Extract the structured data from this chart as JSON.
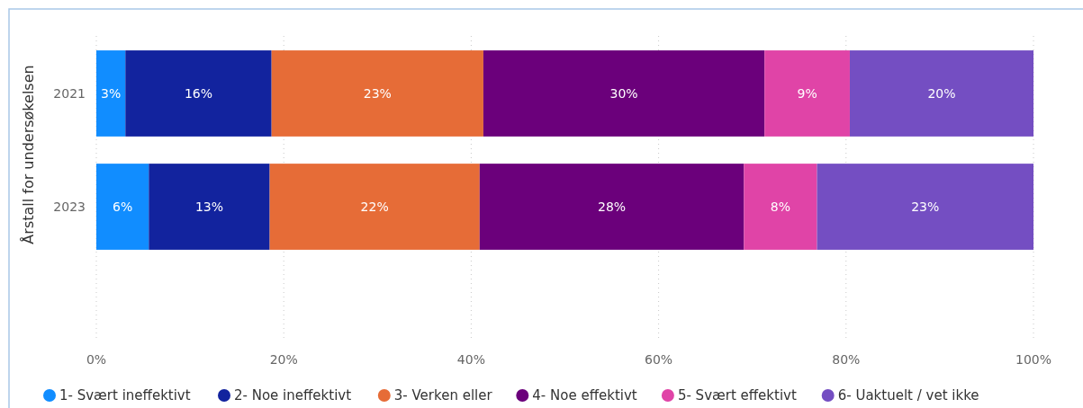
{
  "chart_data": {
    "type": "bar",
    "orientation": "horizontal",
    "stacked": true,
    "ylabel": "Årstall for undersøkelsen",
    "categories": [
      "2021",
      "2023"
    ],
    "series": [
      {
        "name": "1- Svært ineffektivt",
        "color": "#118dff",
        "values": [
          3.1,
          5.6
        ],
        "value_labels": [
          "3%",
          "6%"
        ]
      },
      {
        "name": "2- Noe ineffektivt",
        "color": "#12239e",
        "values": [
          15.6,
          12.9
        ],
        "value_labels": [
          "16%",
          "13%"
        ]
      },
      {
        "name": "3- Verken eller",
        "color": "#e66c37",
        "values": [
          22.6,
          22.4
        ],
        "value_labels": [
          "23%",
          "22%"
        ]
      },
      {
        "name": "4- Noe effektivt",
        "color": "#6b007b",
        "values": [
          30.0,
          28.2
        ],
        "value_labels": [
          "30%",
          "28%"
        ]
      },
      {
        "name": "5- Svært effektivt",
        "color": "#e044a7",
        "values": [
          9.1,
          7.8
        ],
        "value_labels": [
          "9%",
          "8%"
        ]
      },
      {
        "name": "6- Uaktuelt / vet ikke",
        "color": "#744ec2",
        "values": [
          19.6,
          23.1
        ],
        "value_labels": [
          "20%",
          "23%"
        ]
      }
    ],
    "xlim": [
      0,
      100
    ],
    "xticks": [
      {
        "value": 0,
        "label": "0%"
      },
      {
        "value": 20,
        "label": "20%"
      },
      {
        "value": 40,
        "label": "40%"
      },
      {
        "value": 60,
        "label": "60%"
      },
      {
        "value": 80,
        "label": "80%"
      },
      {
        "value": 100,
        "label": "100%"
      }
    ],
    "grid": "x",
    "legend": "bottom"
  }
}
